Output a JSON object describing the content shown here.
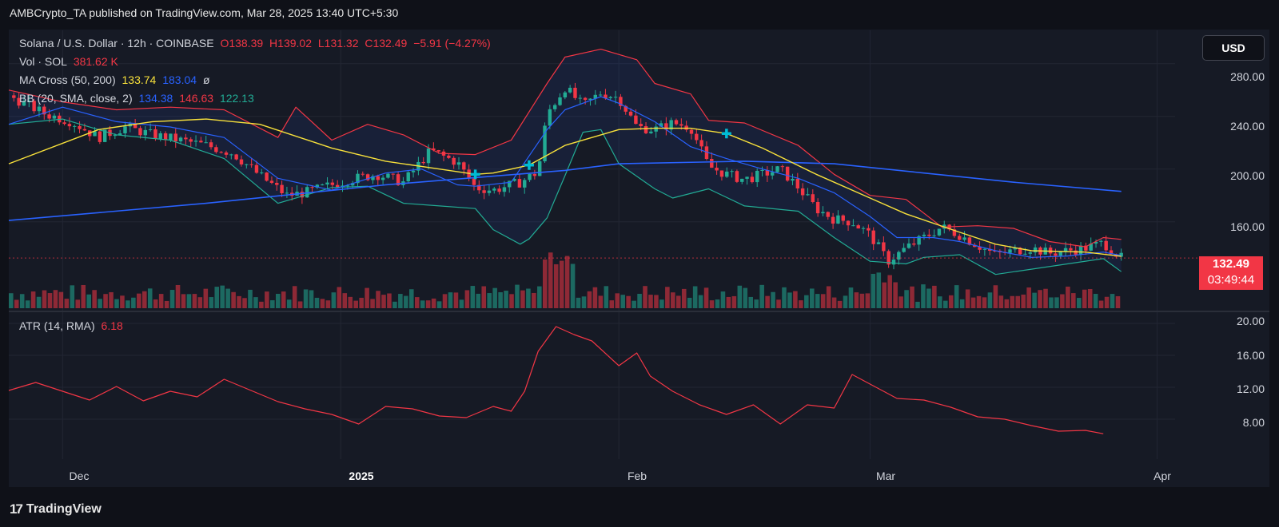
{
  "publish_line": "AMBCrypto_TA published on TradingView.com, Mar 28, 2025 13:40 UTC+5:30",
  "header": {
    "symbol": "Solana / U.S. Dollar · 12h · COINBASE",
    "open": "O138.39",
    "high": "H139.02",
    "low": "L131.32",
    "close": "C132.49",
    "change": "−5.91 (−4.27%)",
    "vol_label": "Vol · SOL",
    "vol_value": "381.62 K",
    "ma_label": "MA Cross (50, 200)",
    "ma_50": "133.74",
    "ma_200": "183.04",
    "ma_symbol": "ø",
    "bb_label": "BB (20, SMA, close, 2)",
    "bb_basis": "134.38",
    "bb_upper": "146.63",
    "bb_lower": "122.13",
    "atr_label": "ATR (14, RMA)",
    "atr_value": "6.18"
  },
  "currency_button": "USD",
  "last_price": {
    "price": "132.49",
    "countdown": "03:49:44"
  },
  "colors": {
    "up": "#22ab94",
    "down": "#f23645",
    "ma50": "#f7e03b",
    "ma200": "#2962ff",
    "bb_basis": "#2962ff",
    "bb_upper": "#f23645",
    "bb_lower": "#22ab94",
    "atr": "#f23645",
    "cross": "#00bcd4"
  },
  "footer": {
    "logo": "17",
    "brand": "TradingView"
  },
  "chart_data": {
    "type": "line",
    "title": "Solana / U.S. Dollar · 12h · COINBASE",
    "price_axis": {
      "ticks": [
        "280.00",
        "240.00",
        "200.00",
        "160.00"
      ],
      "ylim": [
        118,
        292
      ]
    },
    "atr_axis": {
      "ticks": [
        "20.00",
        "16.00",
        "12.00",
        "8.00"
      ],
      "ylim": [
        4.5,
        21
      ]
    },
    "x_ticks": [
      "Dec",
      "2025",
      "Feb",
      "Mar",
      "Apr"
    ],
    "x_tick_days": [
      4,
      35,
      66,
      94,
      126
    ],
    "x_range_days": [
      -2,
      128
    ],
    "series": [
      {
        "key": "ma200",
        "name": "MA Cross 200",
        "x": [
          -2,
          20,
          40,
          60,
          66,
          80,
          90,
          100,
          110,
          122
        ],
        "y": [
          161,
          174,
          188,
          199,
          204,
          206,
          204,
          197,
          190,
          183.04
        ]
      },
      {
        "key": "ma50",
        "name": "MA Cross 50",
        "x": [
          -2,
          8,
          14,
          20,
          26,
          34,
          40,
          46,
          50,
          52,
          56,
          60,
          66,
          70,
          74,
          78,
          82,
          88,
          94,
          98,
          104,
          108,
          112,
          118,
          122
        ],
        "y": [
          204,
          230,
          236,
          238,
          234,
          216,
          206,
          200,
          196,
          197,
          203,
          218,
          230,
          231,
          231,
          227,
          216,
          196,
          178,
          166,
          152,
          143,
          138,
          137,
          133.74
        ]
      },
      {
        "key": "bb_basis",
        "name": "BB basis",
        "x": [
          -2,
          4,
          10,
          16,
          22,
          28,
          34,
          40,
          44,
          48,
          50,
          54,
          58,
          60,
          64,
          66,
          70,
          74,
          78,
          82,
          86,
          90,
          94,
          97,
          101,
          104,
          108,
          112,
          116,
          120,
          122
        ],
        "y": [
          234,
          247,
          236,
          232,
          224,
          193,
          184,
          197,
          200,
          188,
          187,
          190,
          230,
          245,
          255,
          250,
          236,
          217,
          208,
          200,
          193,
          182,
          164,
          148,
          148,
          145,
          138,
          133,
          134,
          137,
          134.38
        ]
      },
      {
        "key": "bb_upper",
        "name": "BB upper",
        "x": [
          -2,
          4,
          10,
          16,
          22,
          28,
          30,
          34,
          38,
          42,
          46,
          50,
          54,
          58,
          60,
          64,
          68,
          70,
          74,
          76,
          80,
          86,
          90,
          94,
          98,
          102,
          106,
          110,
          114,
          118,
          120,
          122
        ],
        "y": [
          260,
          251,
          245,
          247,
          245,
          224,
          247,
          222,
          234,
          226,
          212,
          211,
          222,
          265,
          285,
          291,
          283,
          265,
          257,
          237,
          235,
          218,
          196,
          180,
          177,
          156,
          157,
          155,
          145,
          141,
          148,
          146.63
        ]
      },
      {
        "key": "bb_lower",
        "name": "BB lower",
        "x": [
          -2,
          4,
          10,
          16,
          22,
          28,
          34,
          38,
          42,
          46,
          50,
          52,
          55,
          56,
          58,
          60,
          62,
          64,
          66,
          70,
          72,
          76,
          80,
          86,
          90,
          94,
          98,
          100,
          104,
          108,
          112,
          116,
          120,
          122
        ],
        "y": [
          234,
          238,
          226,
          222,
          208,
          174,
          186,
          187,
          174,
          172,
          170,
          154,
          143,
          147,
          163,
          195,
          228,
          230,
          204,
          185,
          178,
          185,
          172,
          168,
          148,
          130,
          128,
          133,
          135,
          120,
          124,
          128,
          132,
          122.13
        ]
      },
      {
        "key": "atr",
        "name": "ATR (14, RMA)",
        "x": [
          -2,
          1,
          4,
          7,
          10,
          13,
          16,
          19,
          22,
          25,
          28,
          31,
          34,
          37,
          40,
          43,
          46,
          49,
          52,
          54,
          55.5,
          57,
          59,
          61,
          63,
          66,
          68,
          69.5,
          72,
          75,
          78,
          81,
          84,
          87,
          90,
          92,
          94,
          95.5,
          97,
          100,
          103,
          106,
          109,
          112,
          115,
          118,
          120
        ],
        "y": [
          11.6,
          12.6,
          11.5,
          10.4,
          12.1,
          10.3,
          11.5,
          10.8,
          13.0,
          11.6,
          10.2,
          9.3,
          8.6,
          7.4,
          9.6,
          9.3,
          8.4,
          8.2,
          9.6,
          9.0,
          11.5,
          16.5,
          19.6,
          18.6,
          17.8,
          14.7,
          16.3,
          13.4,
          11.5,
          9.8,
          8.6,
          9.8,
          7.4,
          9.8,
          9.4,
          13.6,
          12.4,
          11.5,
          10.6,
          10.4,
          9.5,
          8.3,
          8.0,
          7.2,
          6.5,
          6.6,
          6.18
        ]
      }
    ],
    "candles": {
      "close_x": [
        -2,
        2,
        5,
        8,
        11,
        14,
        17,
        20,
        23,
        26,
        29,
        31,
        33,
        36,
        39,
        42,
        45,
        48,
        50,
        52,
        55,
        57,
        58,
        60,
        62,
        64,
        66,
        68,
        70,
        72,
        74,
        76,
        78,
        80,
        82,
        84,
        86,
        88,
        90,
        92,
        94,
        96,
        98,
        100,
        102,
        104,
        106,
        108,
        110,
        112,
        114,
        116,
        118,
        120,
        122
      ],
      "close_y": [
        256,
        242,
        236,
        224,
        232,
        226,
        222,
        218,
        212,
        195,
        180,
        182,
        186,
        192,
        196,
        190,
        214,
        205,
        186,
        184,
        190,
        198,
        242,
        262,
        248,
        258,
        254,
        232,
        230,
        235,
        232,
        202,
        196,
        192,
        196,
        200,
        186,
        170,
        162,
        160,
        150,
        130,
        140,
        148,
        156,
        150,
        142,
        135,
        138,
        140,
        136,
        138,
        140,
        144,
        132.49
      ],
      "last_close": 132.49
    },
    "ma_cross_markers_x": [
      50,
      56,
      78
    ],
    "volume_bars": 200
  }
}
